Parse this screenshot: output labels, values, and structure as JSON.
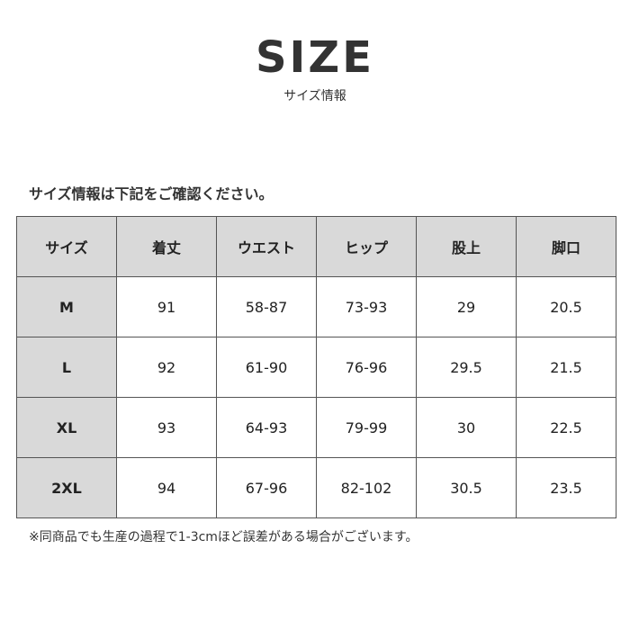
{
  "title": "SIZE",
  "subtitle": "サイズ情報",
  "intro": "サイズ情報は下記をご確認ください。",
  "table": {
    "headers": [
      "サイズ",
      "着丈",
      "ウエスト",
      "ヒップ",
      "股上",
      "脚口"
    ],
    "rows": [
      [
        "M",
        "91",
        "58-87",
        "73-93",
        "29",
        "20.5"
      ],
      [
        "L",
        "92",
        "61-90",
        "76-96",
        "29.5",
        "21.5"
      ],
      [
        "XL",
        "93",
        "64-93",
        "79-99",
        "30",
        "22.5"
      ],
      [
        "2XL",
        "94",
        "67-96",
        "82-102",
        "30.5",
        "23.5"
      ]
    ]
  },
  "note": "※同商品でも生産の過程で1-3cmほど誤差がある場合がございます。",
  "colors": {
    "header_bg": "#d9d9d9",
    "text": "#333333",
    "border": "#555555"
  }
}
